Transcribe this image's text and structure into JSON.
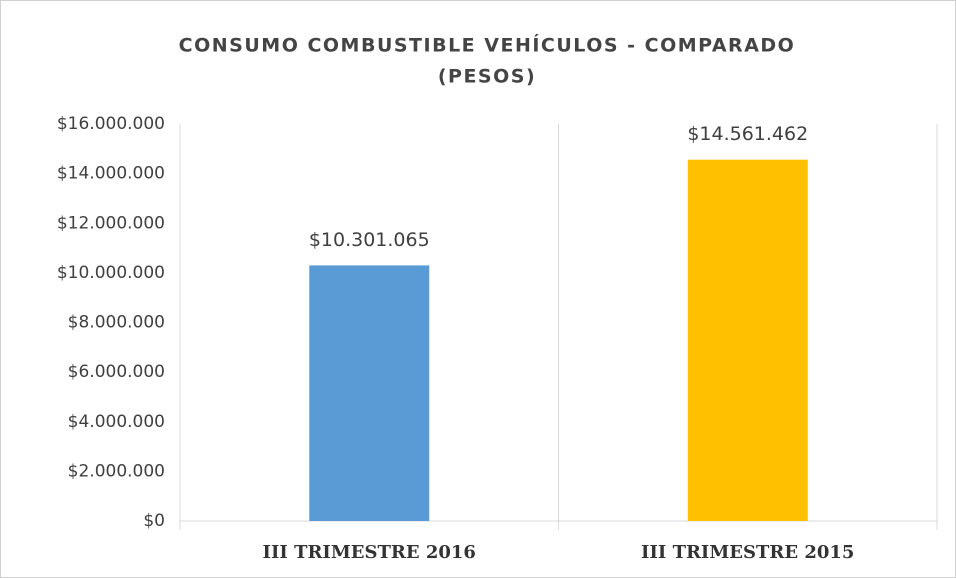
{
  "chart_data": {
    "type": "bar",
    "title": [
      "CONSUMO COMBUSTIBLE VEHÍCULOS - COMPARADO",
      "(PESOS)"
    ],
    "categories": [
      "III TRIMESTRE 2016",
      "III TRIMESTRE 2015"
    ],
    "values": [
      10301065,
      14561462
    ],
    "value_labels": [
      "$10.301.065",
      "$14.561.462"
    ],
    "colors": [
      "#5b9bd5",
      "#ffc000"
    ],
    "ylim": [
      0,
      16000000
    ],
    "yticks": [
      {
        "value": 0,
        "label": "$0"
      },
      {
        "value": 2000000,
        "label": "$2.000.000"
      },
      {
        "value": 4000000,
        "label": "$4.000.000"
      },
      {
        "value": 6000000,
        "label": "$6.000.000"
      },
      {
        "value": 8000000,
        "label": "$8.000.000"
      },
      {
        "value": 10000000,
        "label": "$10.000.000"
      },
      {
        "value": 12000000,
        "label": "$12.000.000"
      },
      {
        "value": 14000000,
        "label": "$14.000.000"
      },
      {
        "value": 16000000,
        "label": "$16.000.000"
      }
    ],
    "grid": false
  }
}
